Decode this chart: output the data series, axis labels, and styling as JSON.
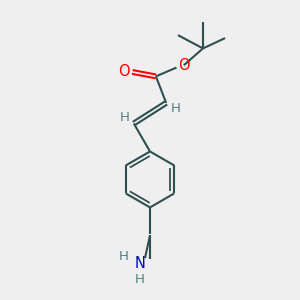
{
  "bg_color": "#efefef",
  "bond_color": "#2f4f4f",
  "O_color": "#ff0000",
  "N_color": "#0000cd",
  "H_color": "#4f8080",
  "line_width": 1.5,
  "font_size": 9.5,
  "figsize": [
    3.0,
    3.0
  ],
  "dpi": 100,
  "xlim": [
    0,
    10
  ],
  "ylim": [
    0,
    10
  ]
}
